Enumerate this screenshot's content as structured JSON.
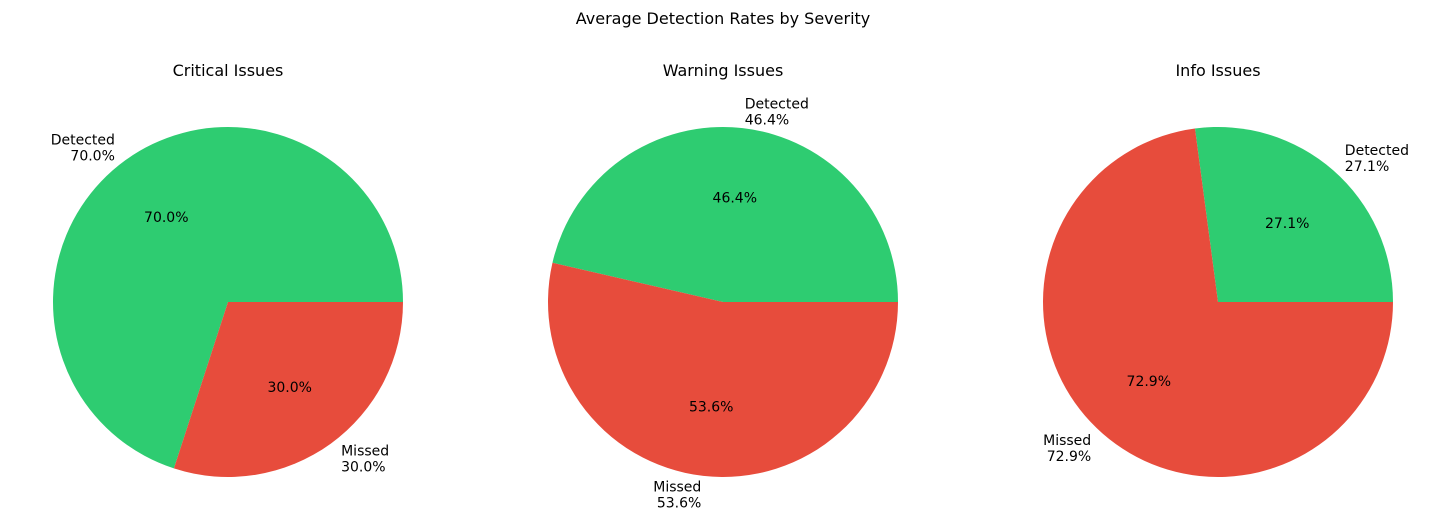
{
  "figure": {
    "title": "Average Detection Rates by Severity"
  },
  "colors": {
    "detected": "#2ecc71",
    "missed": "#e74c3c"
  },
  "chart_data": [
    {
      "type": "pie",
      "title": "Critical Issues",
      "slices": [
        {
          "label": "Detected",
          "value": 70.0,
          "pct_text": "70.0%",
          "color": "#2ecc71"
        },
        {
          "label": "Missed",
          "value": 30.0,
          "pct_text": "30.0%",
          "color": "#e74c3c"
        }
      ]
    },
    {
      "type": "pie",
      "title": "Warning Issues",
      "slices": [
        {
          "label": "Detected",
          "value": 46.4,
          "pct_text": "46.4%",
          "color": "#2ecc71"
        },
        {
          "label": "Missed",
          "value": 53.6,
          "pct_text": "53.6%",
          "color": "#e74c3c"
        }
      ]
    },
    {
      "type": "pie",
      "title": "Info Issues",
      "slices": [
        {
          "label": "Detected",
          "value": 27.1,
          "pct_text": "27.1%",
          "color": "#2ecc71"
        },
        {
          "label": "Missed",
          "value": 72.9,
          "pct_text": "72.9%",
          "color": "#e74c3c"
        }
      ]
    }
  ]
}
